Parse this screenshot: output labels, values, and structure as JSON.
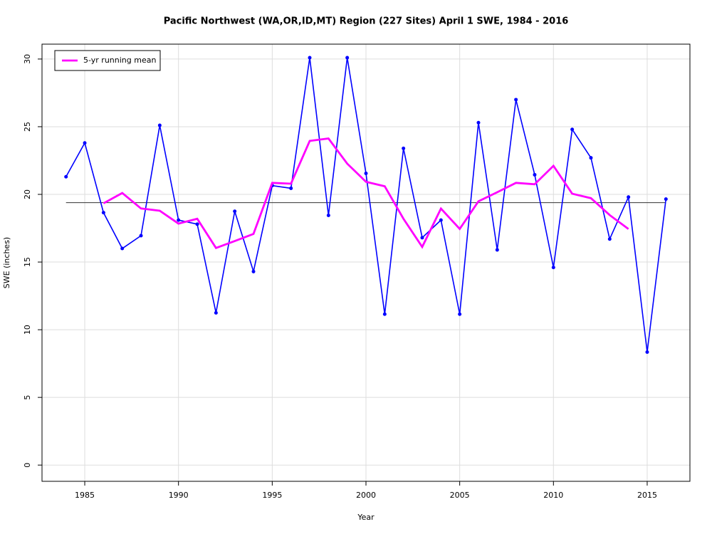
{
  "chart_data": {
    "type": "line",
    "title": "Pacific Northwest (WA,OR,ID,MT) Region (227 Sites) April 1 SWE, 1984 - 2016",
    "xlabel": "Year",
    "ylabel": "SWE (inches)",
    "x": [
      1984,
      1985,
      1986,
      1987,
      1988,
      1989,
      1990,
      1991,
      1992,
      1993,
      1994,
      1995,
      1996,
      1997,
      1998,
      1999,
      2000,
      2001,
      2002,
      2003,
      2004,
      2005,
      2006,
      2007,
      2008,
      2009,
      2010,
      2011,
      2012,
      2013,
      2014,
      2015,
      2016
    ],
    "series": [
      {
        "color": "#0000ff",
        "markers": true,
        "values": [
          21.3,
          23.8,
          18.65,
          16.0,
          16.95,
          25.1,
          18.1,
          17.8,
          11.25,
          18.75,
          14.3,
          20.65,
          20.45,
          30.1,
          18.45,
          30.1,
          21.55,
          11.15,
          23.4,
          16.8,
          18.1,
          11.15,
          25.3,
          15.9,
          27.0,
          21.45,
          14.6,
          24.8,
          22.7,
          16.7,
          19.8,
          8.35,
          19.65
        ]
      },
      {
        "name": "5-yr running mean",
        "color": "#ff00ff",
        "markers": false,
        "values": [
          null,
          null,
          19.34,
          20.1,
          18.96,
          18.79,
          17.84,
          18.2,
          16.04,
          16.55,
          17.08,
          20.85,
          20.79,
          23.95,
          24.13,
          22.27,
          20.93,
          20.6,
          18.2,
          16.12,
          18.95,
          17.45,
          19.49,
          20.16,
          20.85,
          20.75,
          22.11,
          20.05,
          19.72,
          18.47,
          17.44,
          null,
          null
        ]
      }
    ],
    "mean": 19.39,
    "mean_color": "#333333",
    "xlim": [
      1982.72,
      2017.28
    ],
    "xticks": [
      1985,
      1990,
      1995,
      2000,
      2005,
      2010,
      2015
    ],
    "ylim": [
      -1.2,
      31.1
    ],
    "yticks": [
      0,
      5,
      10,
      15,
      20,
      25,
      30
    ],
    "grid": true,
    "legend": "top-left"
  }
}
